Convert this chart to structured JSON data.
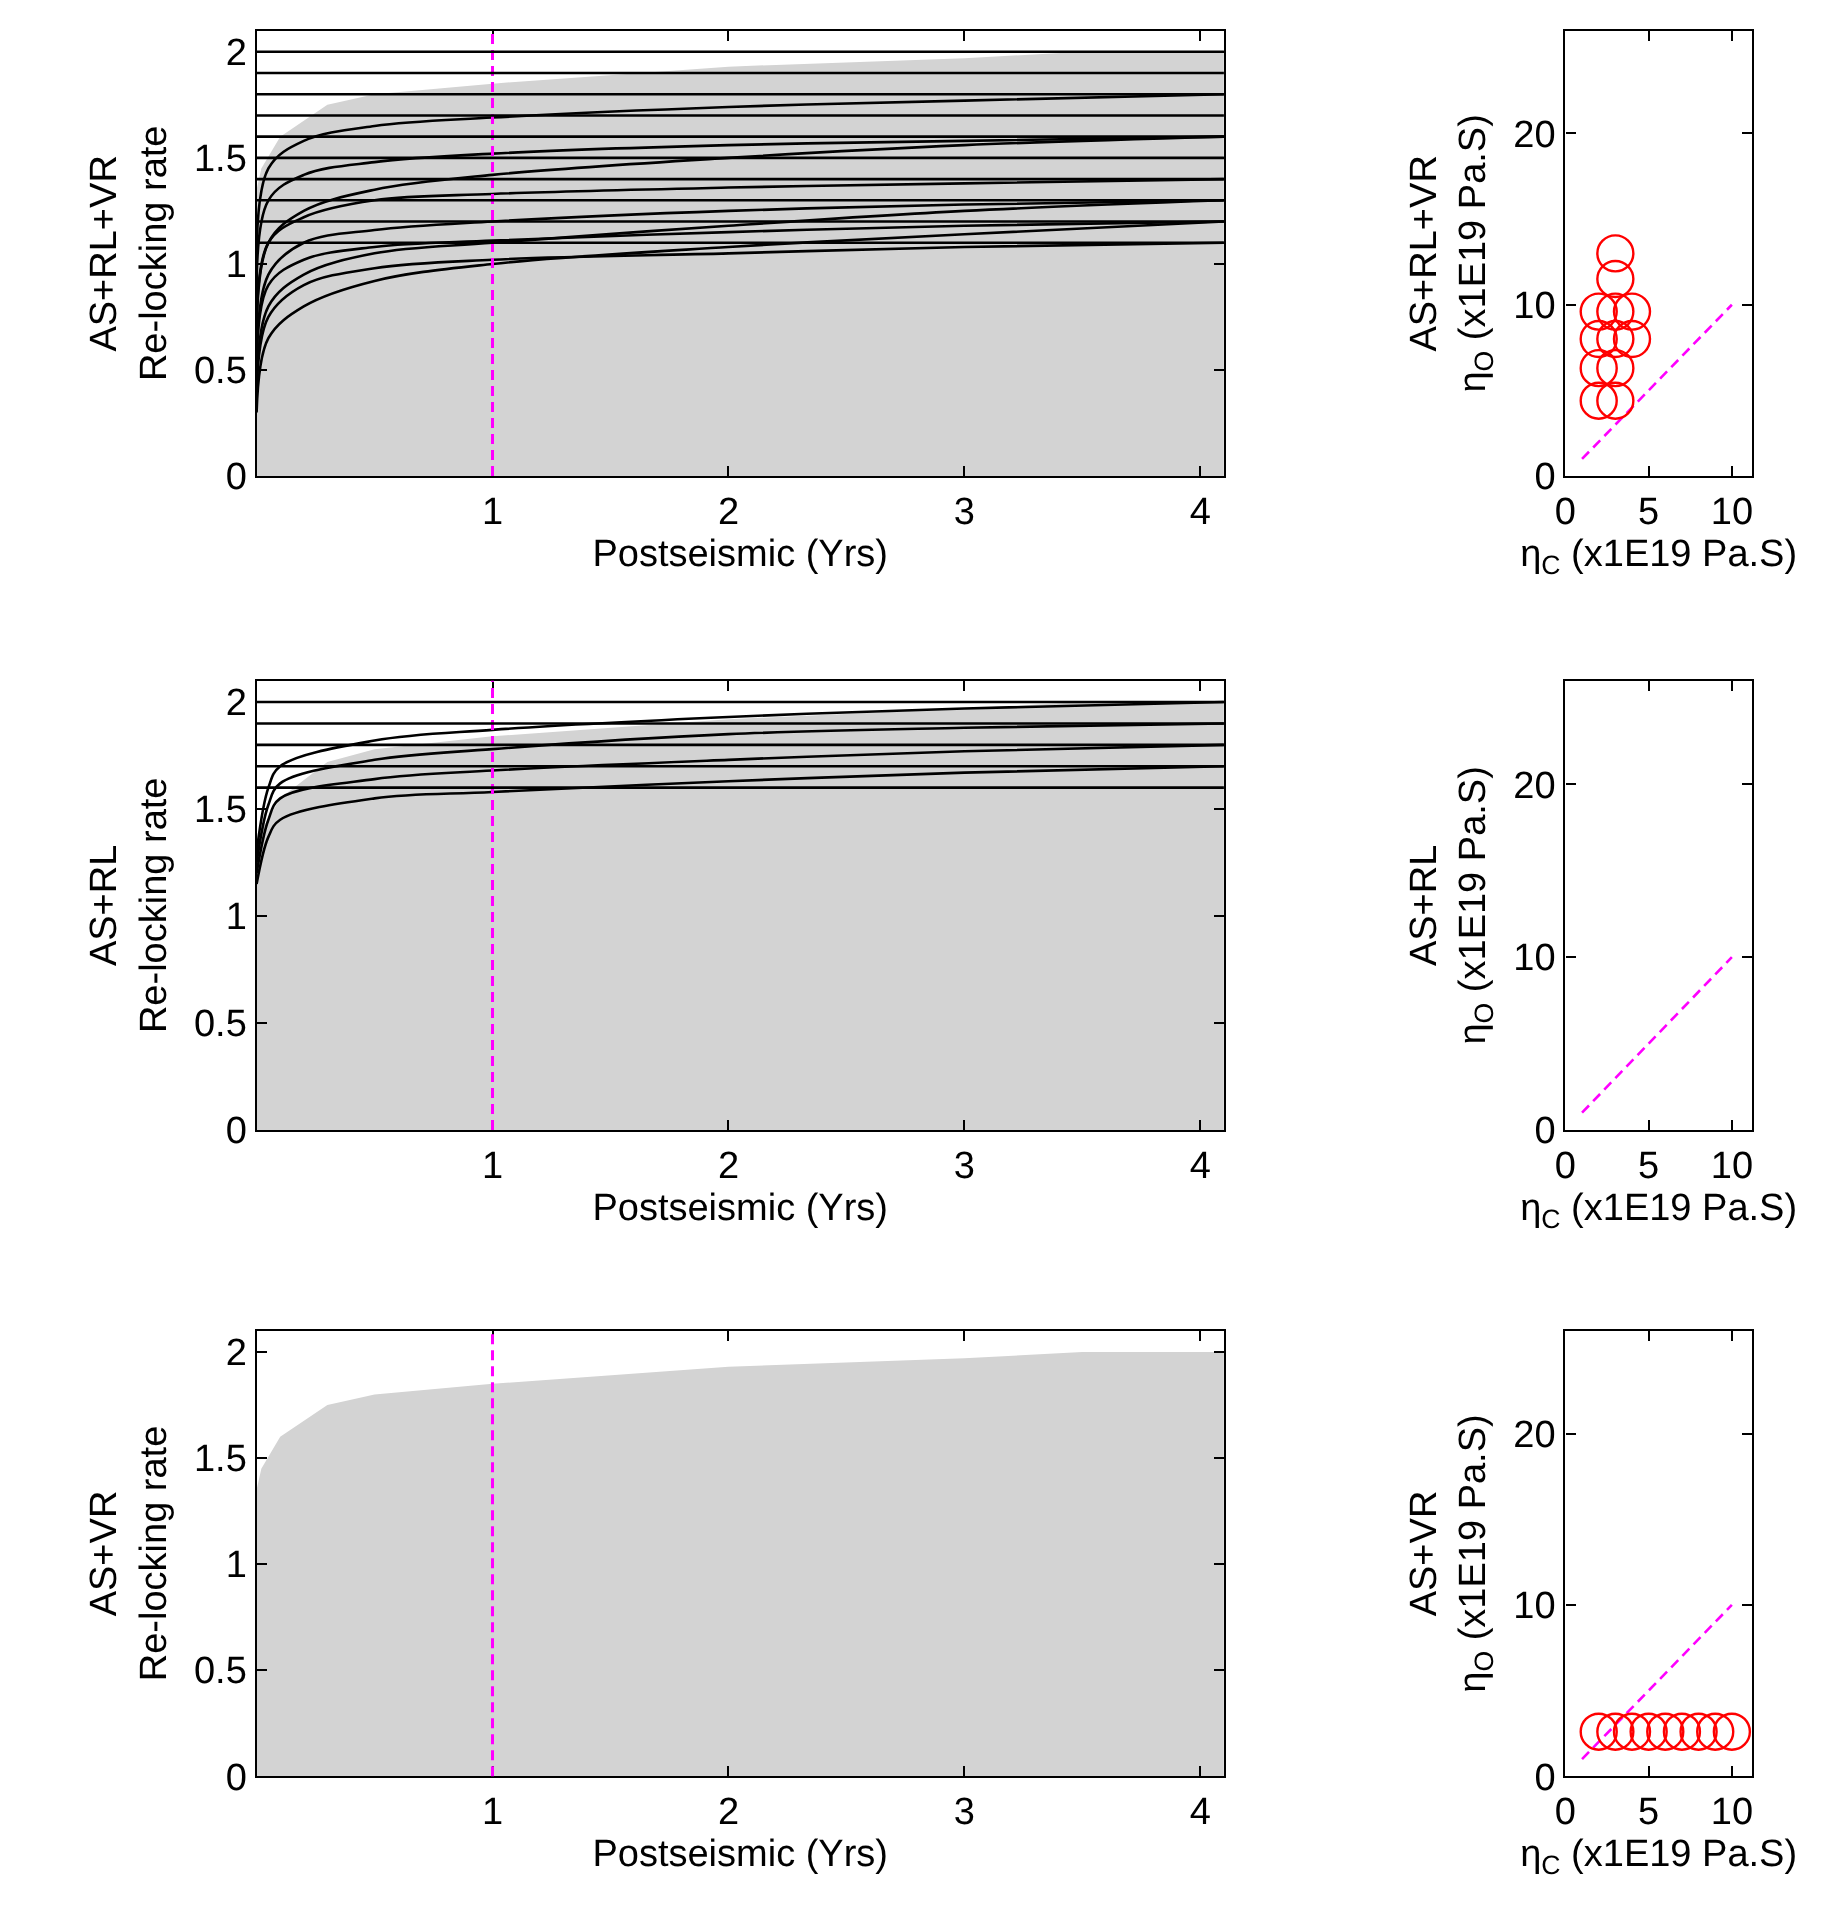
{
  "chart_data": [
    {
      "type": "line",
      "xlabel": "Postseismic (Yrs)",
      "ylabel": "AS+RL+VR\nRe-locking rate",
      "xlim": [
        0,
        4.1
      ],
      "xticks": [
        1,
        2,
        3,
        4
      ],
      "ylim": [
        0,
        2.1
      ],
      "yticks": [
        0,
        0.5,
        1,
        1.5,
        2
      ],
      "x": [
        0,
        0.02,
        0.1,
        0.3,
        0.5,
        1,
        2,
        3,
        3.5,
        4.1
      ],
      "series": [
        {
          "type": "area",
          "color": "#d3d3d3",
          "values": [
            1.35,
            1.45,
            1.6,
            1.75,
            1.8,
            1.85,
            1.93,
            1.97,
            2.0,
            2.0
          ]
        },
        {
          "x": [
            0,
            0.05,
            0.2,
            0.5,
            1,
            2,
            3,
            4.1
          ],
          "color": "#000000",
          "values": [
            0.9,
            1.45,
            1.58,
            1.65,
            1.69,
            1.74,
            1.77,
            1.8
          ]
        },
        {
          "x": [
            0,
            0.05,
            0.2,
            0.5,
            1,
            2,
            3,
            4.1
          ],
          "color": "#000000",
          "values": [
            0.8,
            1.3,
            1.42,
            1.48,
            1.52,
            1.56,
            1.58,
            1.6
          ]
        },
        {
          "x": [
            0,
            0.05,
            0.2,
            0.5,
            1,
            2,
            3,
            4.1
          ],
          "color": "#000000",
          "values": [
            0.6,
            1.1,
            1.22,
            1.3,
            1.33,
            1.36,
            1.38,
            1.4
          ]
        },
        {
          "x": [
            0,
            0.05,
            0.2,
            0.5,
            1,
            2,
            3,
            4.1
          ],
          "color": "#000000",
          "values": [
            0.5,
            0.95,
            1.1,
            1.16,
            1.2,
            1.25,
            1.28,
            1.3
          ]
        },
        {
          "x": [
            0,
            0.05,
            0.2,
            0.5,
            1,
            2,
            3,
            4.1
          ],
          "color": "#000000",
          "values": [
            0.5,
            0.9,
            1.02,
            1.08,
            1.11,
            1.15,
            1.18,
            1.2
          ]
        },
        {
          "x": [
            0,
            0.05,
            0.2,
            0.5,
            1,
            2,
            3,
            4.1
          ],
          "color": "#000000",
          "values": [
            0.4,
            0.75,
            0.9,
            0.98,
            1.02,
            1.05,
            1.08,
            1.1
          ]
        },
        {
          "x": [
            0,
            0.05,
            0.2,
            0.5,
            1,
            2,
            3,
            4.1
          ],
          "color": "#000000",
          "values": [
            0.4,
            0.8,
            0.95,
            1.05,
            1.1,
            1.18,
            1.25,
            1.3
          ]
        },
        {
          "x": [
            0,
            0.05,
            0.2,
            0.5,
            1,
            2,
            3,
            4.1
          ],
          "color": "#000000",
          "values": [
            0.6,
            1.1,
            1.25,
            1.35,
            1.42,
            1.5,
            1.56,
            1.6
          ]
        },
        {
          "x": [
            0,
            0.05,
            0.2,
            0.5,
            1,
            2,
            3,
            4.1
          ],
          "color": "#000000",
          "values": [
            0.3,
            0.65,
            0.8,
            0.92,
            1.0,
            1.08,
            1.14,
            1.2
          ]
        }
      ],
      "ref_lines": [
        {
          "axis": "x",
          "value": 1,
          "color": "#ff00ff",
          "line_style": "dashed"
        },
        {
          "axis": "y",
          "value": 1.1,
          "color": "#000000",
          "line_style": "solid"
        },
        {
          "axis": "y",
          "value": 1.2,
          "color": "#000000",
          "line_style": "solid"
        },
        {
          "axis": "y",
          "value": 1.3,
          "color": "#000000",
          "line_style": "solid"
        },
        {
          "axis": "y",
          "value": 1.4,
          "color": "#000000",
          "line_style": "solid"
        },
        {
          "axis": "y",
          "value": 1.5,
          "color": "#000000",
          "line_style": "solid"
        },
        {
          "axis": "y",
          "value": 1.6,
          "color": "#000000",
          "line_style": "solid"
        },
        {
          "axis": "y",
          "value": 1.7,
          "color": "#000000",
          "line_style": "solid"
        },
        {
          "axis": "y",
          "value": 1.8,
          "color": "#000000",
          "line_style": "solid"
        },
        {
          "axis": "y",
          "value": 1.9,
          "color": "#000000",
          "line_style": "solid"
        },
        {
          "axis": "y",
          "value": 2.0,
          "color": "#000000",
          "line_style": "solid"
        }
      ]
    },
    {
      "type": "scatter",
      "xlabel": "η$_{C}$ (x1E19 Pa.S)",
      "ylabel": "AS+RL+VR\nη$_{O}$ (x1E19 Pa.S)",
      "xlim": [
        0,
        11.2
      ],
      "xticks": [
        0,
        5,
        10
      ],
      "ylim": [
        0,
        26
      ],
      "yticks": [
        0,
        10,
        20
      ],
      "series": [
        {
          "type": "line",
          "line_style": "dashed",
          "color": "#ff00ff",
          "x": [
            1,
            10
          ],
          "values": [
            1,
            10
          ]
        },
        {
          "marker": "circle",
          "color": "#ff0000",
          "x": [
            2,
            2,
            2,
            2,
            3,
            3,
            3,
            3,
            3,
            3,
            4,
            4
          ],
          "values": [
            4.4,
            6.3,
            8.0,
            9.6,
            4.4,
            6.3,
            8.0,
            9.6,
            11.5,
            13.0,
            8.0,
            9.6
          ]
        }
      ]
    },
    {
      "type": "line",
      "xlabel": "Postseismic (Yrs)",
      "ylabel": "AS+RL\nRe-locking rate",
      "xlim": [
        0,
        4.1
      ],
      "xticks": [
        1,
        2,
        3,
        4
      ],
      "ylim": [
        0,
        2.1
      ],
      "yticks": [
        0,
        0.5,
        1,
        1.5,
        2
      ],
      "x": [
        0,
        0.02,
        0.1,
        0.3,
        0.5,
        1,
        2,
        3,
        3.5,
        4.1
      ],
      "series": [
        {
          "type": "area",
          "color": "#d3d3d3",
          "values": [
            1.3,
            1.4,
            1.55,
            1.72,
            1.78,
            1.84,
            1.92,
            1.97,
            2.0,
            2.0
          ]
        },
        {
          "x": [
            0,
            0.05,
            0.1,
            0.5,
            1,
            2,
            3,
            4.1
          ],
          "color": "#000000",
          "values": [
            1.3,
            1.6,
            1.7,
            1.82,
            1.87,
            1.93,
            1.97,
            2.0
          ]
        },
        {
          "x": [
            0,
            0.05,
            0.1,
            0.5,
            1,
            2,
            3,
            4.1
          ],
          "color": "#000000",
          "values": [
            1.25,
            1.52,
            1.62,
            1.73,
            1.78,
            1.85,
            1.88,
            1.9
          ]
        },
        {
          "x": [
            0,
            0.05,
            0.1,
            0.5,
            1,
            2,
            3,
            4.1
          ],
          "color": "#000000",
          "values": [
            1.2,
            1.45,
            1.55,
            1.64,
            1.68,
            1.73,
            1.77,
            1.8
          ]
        },
        {
          "x": [
            0,
            0.05,
            0.1,
            0.5,
            1,
            2,
            3,
            4.1
          ],
          "color": "#000000",
          "values": [
            1.15,
            1.37,
            1.45,
            1.55,
            1.58,
            1.63,
            1.67,
            1.7
          ]
        }
      ],
      "ref_lines": [
        {
          "axis": "x",
          "value": 1,
          "color": "#ff00ff",
          "line_style": "dashed"
        },
        {
          "axis": "y",
          "value": 1.6,
          "color": "#000000",
          "line_style": "solid"
        },
        {
          "axis": "y",
          "value": 1.7,
          "color": "#000000",
          "line_style": "solid"
        },
        {
          "axis": "y",
          "value": 1.8,
          "color": "#000000",
          "line_style": "solid"
        },
        {
          "axis": "y",
          "value": 1.9,
          "color": "#000000",
          "line_style": "solid"
        },
        {
          "axis": "y",
          "value": 2.0,
          "color": "#000000",
          "line_style": "solid"
        }
      ]
    },
    {
      "type": "scatter",
      "xlabel": "η$_{C}$ (x1E19 Pa.S)",
      "ylabel": "AS+RL\nη$_{O}$ (x1E19 Pa.S)",
      "xlim": [
        0,
        11.2
      ],
      "xticks": [
        0,
        5,
        10
      ],
      "ylim": [
        0,
        26
      ],
      "yticks": [
        0,
        10,
        20
      ],
      "series": [
        {
          "type": "line",
          "line_style": "dashed",
          "color": "#ff00ff",
          "x": [
            1,
            10
          ],
          "values": [
            1,
            10
          ]
        }
      ]
    },
    {
      "type": "line",
      "xlabel": "Postseismic (Yrs)",
      "ylabel": "AS+VR\nRe-locking rate",
      "xlim": [
        0,
        4.1
      ],
      "xticks": [
        1,
        2,
        3,
        4
      ],
      "ylim": [
        0,
        2.1
      ],
      "yticks": [
        0,
        0.5,
        1,
        1.5,
        2
      ],
      "x": [
        0,
        0.02,
        0.1,
        0.3,
        0.5,
        1,
        2,
        3,
        3.5,
        4.1
      ],
      "series": [
        {
          "type": "area",
          "color": "#d3d3d3",
          "values": [
            1.35,
            1.45,
            1.6,
            1.75,
            1.8,
            1.85,
            1.93,
            1.97,
            2.0,
            2.0
          ]
        }
      ],
      "ref_lines": [
        {
          "axis": "x",
          "value": 1,
          "color": "#ff00ff",
          "line_style": "dashed"
        }
      ]
    },
    {
      "type": "scatter",
      "xlabel": "η$_{C}$ (x1E19 Pa.S)",
      "ylabel": "AS+VR\nη$_{O}$ (x1E19 Pa.S)",
      "xlim": [
        0,
        11.2
      ],
      "xticks": [
        0,
        5,
        10
      ],
      "ylim": [
        0,
        26
      ],
      "yticks": [
        0,
        10,
        20
      ],
      "series": [
        {
          "type": "line",
          "line_style": "dashed",
          "color": "#ff00ff",
          "x": [
            1,
            10
          ],
          "values": [
            1,
            10
          ]
        },
        {
          "marker": "circle",
          "color": "#ff0000",
          "x": [
            2,
            3,
            4,
            5,
            6,
            7,
            8,
            9,
            10
          ],
          "values": [
            2.6,
            2.6,
            2.6,
            2.6,
            2.6,
            2.6,
            2.6,
            2.6,
            2.6
          ]
        }
      ]
    }
  ]
}
